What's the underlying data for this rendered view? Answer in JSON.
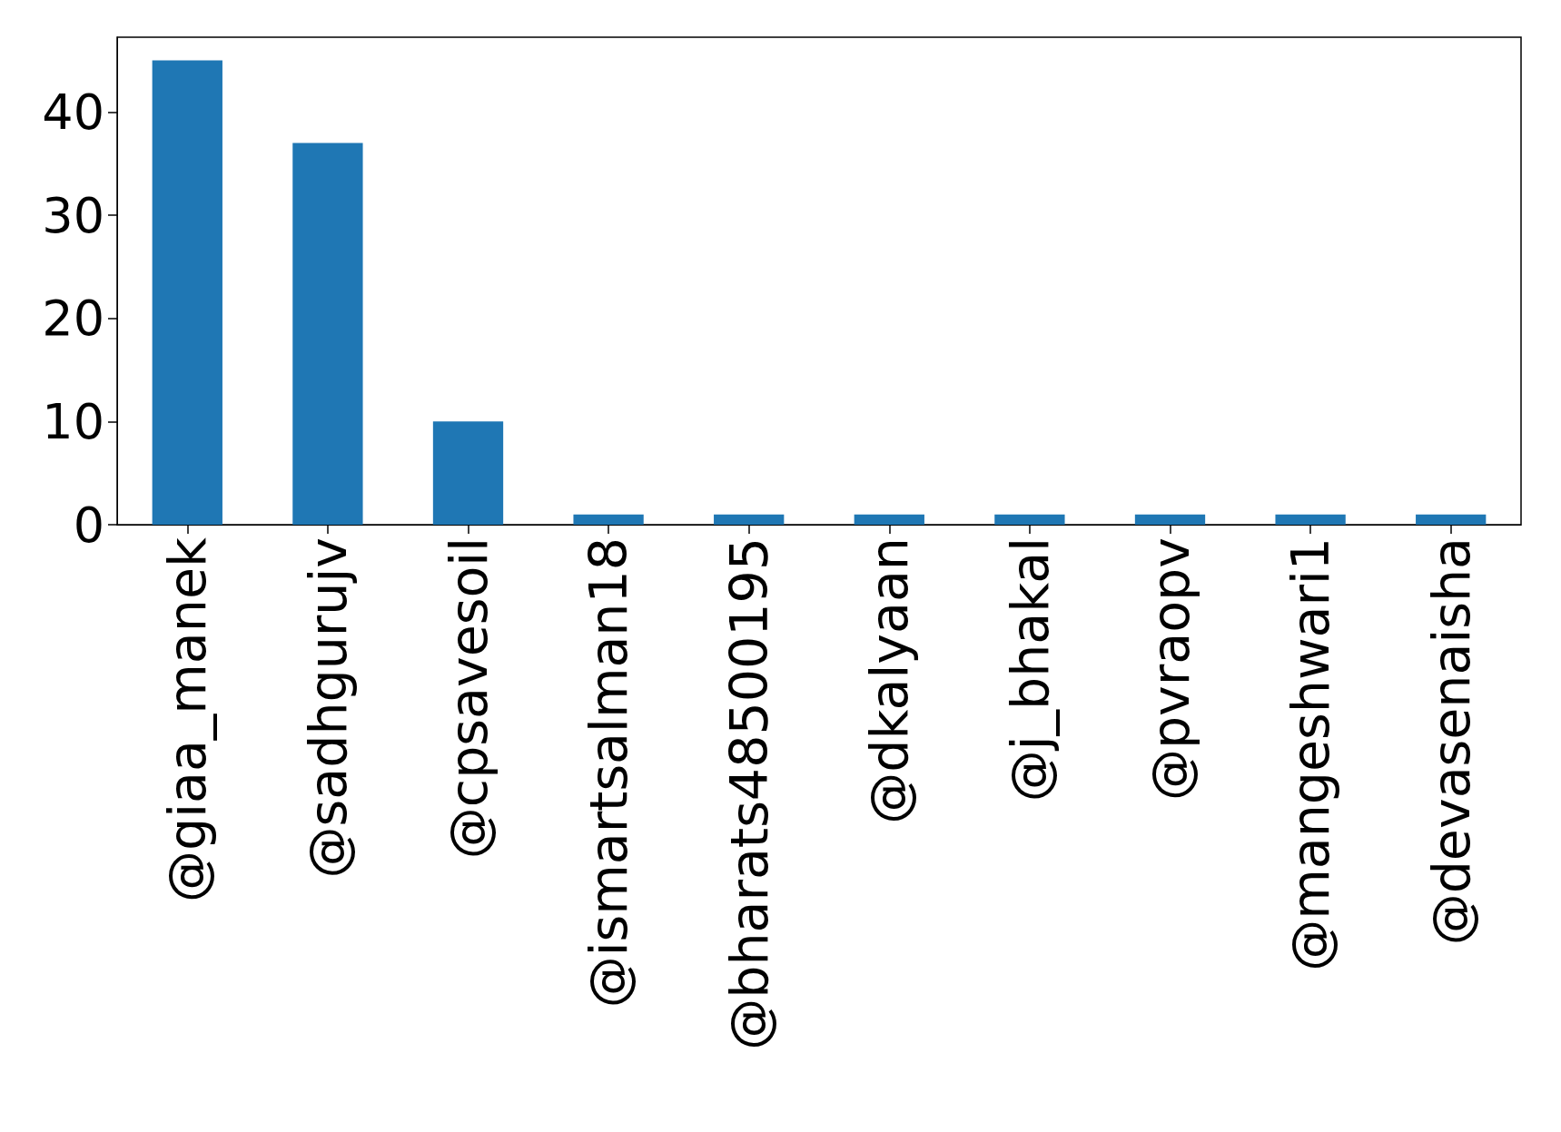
{
  "chart_data": {
    "type": "bar",
    "categories": [
      "@giaa_manek",
      "@sadhgurujv",
      "@cpsavesoil",
      "@ismartsalman18",
      "@bharats48500195",
      "@dkalyaan",
      "@j_bhakal",
      "@pvraopv",
      "@mangeshwari1",
      "@devasenaisha"
    ],
    "values": [
      45,
      37,
      10,
      1,
      1,
      1,
      1,
      1,
      1,
      1
    ],
    "color": "#1f77b4",
    "ylim": [
      0,
      47.25
    ],
    "yticks": [
      0,
      10,
      20,
      30,
      40
    ],
    "grid": false
  }
}
